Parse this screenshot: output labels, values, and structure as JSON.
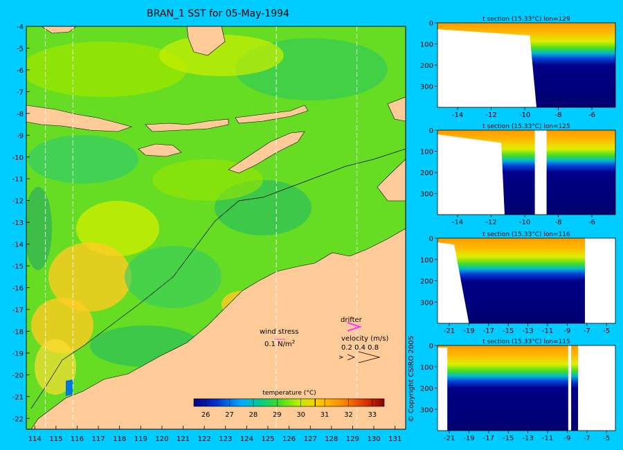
{
  "title": "BRAN_1 SST for 05-May-1994",
  "map": {
    "lon_ticks": [
      "114",
      "115",
      "116",
      "117",
      "118",
      "119",
      "120",
      "121",
      "122",
      "123",
      "124",
      "125",
      "126",
      "127",
      "128",
      "129",
      "130",
      "131"
    ],
    "lat_ticks": [
      "-4",
      "-5",
      "-6",
      "-7",
      "-8",
      "-9",
      "-10",
      "-11",
      "-12",
      "-13",
      "-14",
      "-15",
      "-16",
      "-17",
      "-18",
      "-19",
      "-20",
      "-21",
      "-22"
    ],
    "lon_range": [
      113.6,
      131.5
    ],
    "lat_range": [
      -22.5,
      -4
    ],
    "section_lons": [
      114.5,
      115.8,
      125.4,
      129.2
    ],
    "land_color": "#ffcc99",
    "ocean_color": "#66dd22"
  },
  "legend": {
    "wind_stress_label": "wind stress",
    "wind_stress_value": "0.1 N/m",
    "wind_stress_sup": "2",
    "drifter_label": "drifter",
    "velocity_label": "velocity (m/s)",
    "velocity_values": "0.2 0.4 0.8",
    "drifter_color": "#ff33ff"
  },
  "colorbar": {
    "label": "temperature (°C)",
    "ticks": [
      "26",
      "27",
      "28",
      "29",
      "30",
      "31",
      "32",
      "33"
    ],
    "range": [
      25.5,
      33.5
    ],
    "marker_value": 30.6
  },
  "sections": [
    {
      "title": "t section (15.33°C) lon=129",
      "x_ticks": [
        "-14",
        "-12",
        "-10",
        "-8",
        "-6"
      ],
      "y_ticks": [
        "0",
        "100",
        "200",
        "300"
      ],
      "xrange": [
        -15.2,
        -4.6
      ],
      "yrange": [
        0,
        400
      ]
    },
    {
      "title": "t section (15.33°C) lon=125",
      "x_ticks": [
        "-14",
        "-12",
        "-10",
        "-8",
        "-6"
      ],
      "y_ticks": [
        "0",
        "100",
        "200",
        "300"
      ],
      "xrange": [
        -15.2,
        -4.6
      ],
      "yrange": [
        0,
        400
      ]
    },
    {
      "title": "t section (15.33°C) lon=116",
      "x_ticks": [
        "-21",
        "-19",
        "-17",
        "-15",
        "-13",
        "-11",
        "-9",
        "-7",
        "-5"
      ],
      "y_ticks": [
        "0",
        "100",
        "200",
        "300"
      ],
      "xrange": [
        -22.2,
        -4.1
      ],
      "yrange": [
        0,
        400
      ]
    },
    {
      "title": "t section (15.33°C) lon=115",
      "x_ticks": [
        "-21",
        "-19",
        "-17",
        "-15",
        "-13",
        "-11",
        "-9",
        "-7",
        "-5"
      ],
      "y_ticks": [
        "0",
        "100",
        "200",
        "300"
      ],
      "xrange": [
        -22.2,
        -4.1
      ],
      "yrange": [
        0,
        400
      ]
    }
  ],
  "copyright": "© Copyright CSIRO 2005"
}
